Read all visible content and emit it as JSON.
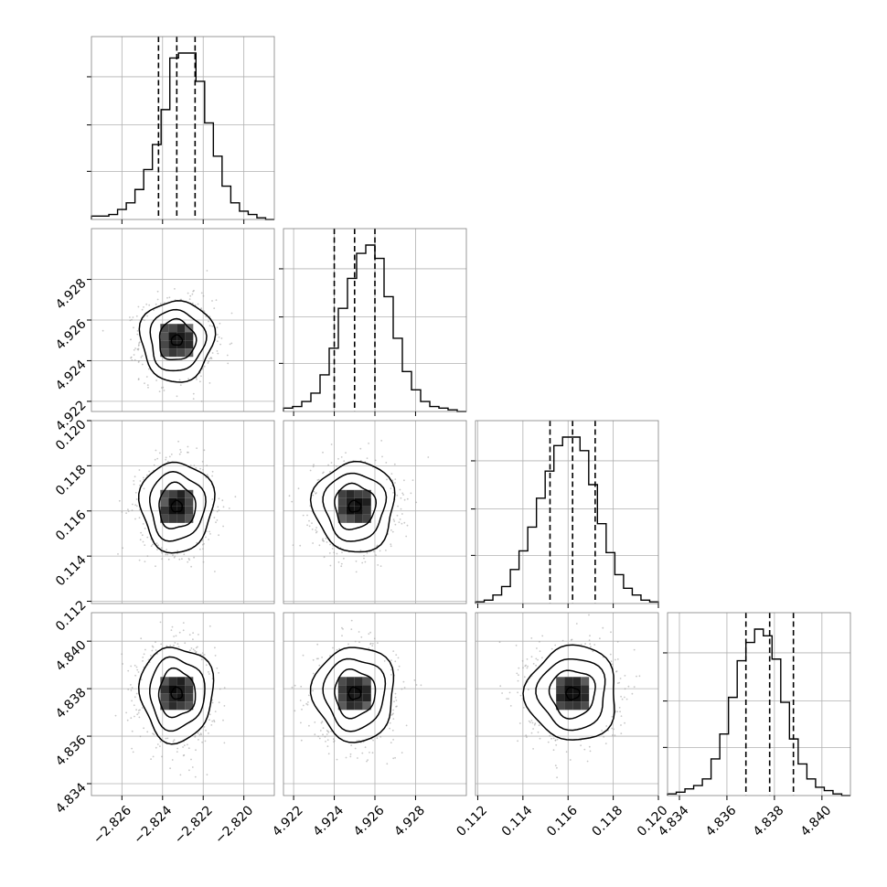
{
  "chart_data": {
    "type": "corner",
    "title": "",
    "parameters": [
      {
        "range": [
          -2.8275,
          -2.8185
        ],
        "ticks": [
          -2.826,
          -2.824,
          -2.822,
          -2.82
        ],
        "tick_labels": [
          "−2.826",
          "−2.824",
          "−2.822",
          "−2.820"
        ],
        "mean": -2.8233,
        "sigma": 0.0009,
        "quantiles": [
          -2.8242,
          -2.8233,
          -2.8224
        ],
        "hist_counts": [
          2,
          2,
          3,
          6,
          10,
          18,
          30,
          45,
          66,
          97,
          100,
          100,
          83,
          58,
          38,
          20,
          10,
          5,
          3,
          1,
          0
        ]
      },
      {
        "range": [
          4.9215,
          4.9305
        ],
        "ticks": [
          4.922,
          4.924,
          4.926,
          4.928
        ],
        "tick_labels": [
          "4.922",
          "4.924",
          "4.926",
          "4.928"
        ],
        "mean": 4.925,
        "sigma": 0.001,
        "quantiles": [
          4.924,
          4.925,
          4.926
        ],
        "hist_counts": [
          2,
          3,
          6,
          11,
          22,
          38,
          62,
          80,
          95,
          100,
          92,
          69,
          44,
          24,
          13,
          6,
          3,
          2,
          1,
          0
        ]
      },
      {
        "range": [
          0.1119,
          0.12
        ],
        "ticks": [
          0.112,
          0.114,
          0.116,
          0.118,
          0.12
        ],
        "tick_labels": [
          "0.112",
          "0.114",
          "0.116",
          "0.118",
          "0.120"
        ],
        "mean": 0.1162,
        "sigma": 0.001,
        "quantiles": [
          0.1152,
          0.1162,
          0.1172
        ],
        "hist_counts": [
          1,
          2,
          5,
          10,
          20,
          31,
          45,
          62,
          78,
          93,
          98,
          98,
          90,
          70,
          47,
          30,
          17,
          9,
          5,
          2,
          1
        ]
      },
      {
        "range": [
          4.8335,
          4.8412
        ],
        "ticks": [
          4.834,
          4.836,
          4.838,
          4.84
        ],
        "tick_labels": [
          "4.834",
          "4.836",
          "4.838",
          "4.840"
        ],
        "mean": 4.8378,
        "sigma": 0.001,
        "quantiles": [
          4.8368,
          4.8378,
          4.8388
        ],
        "hist_counts": [
          1,
          2,
          4,
          6,
          10,
          22,
          37,
          59,
          81,
          92,
          100,
          96,
          82,
          56,
          34,
          19,
          10,
          5,
          3,
          1,
          0
        ]
      }
    ],
    "quantile_levels": [
      0.16,
      0.5,
      0.84
    ],
    "contour_levels": [
      0.5,
      1.0,
      1.5,
      2.0
    ],
    "grid": true,
    "colors": {
      "line": "#000000",
      "grid": "#b0b0b0",
      "frame": "#7f7f7f",
      "points": "#9a9a9a"
    }
  }
}
